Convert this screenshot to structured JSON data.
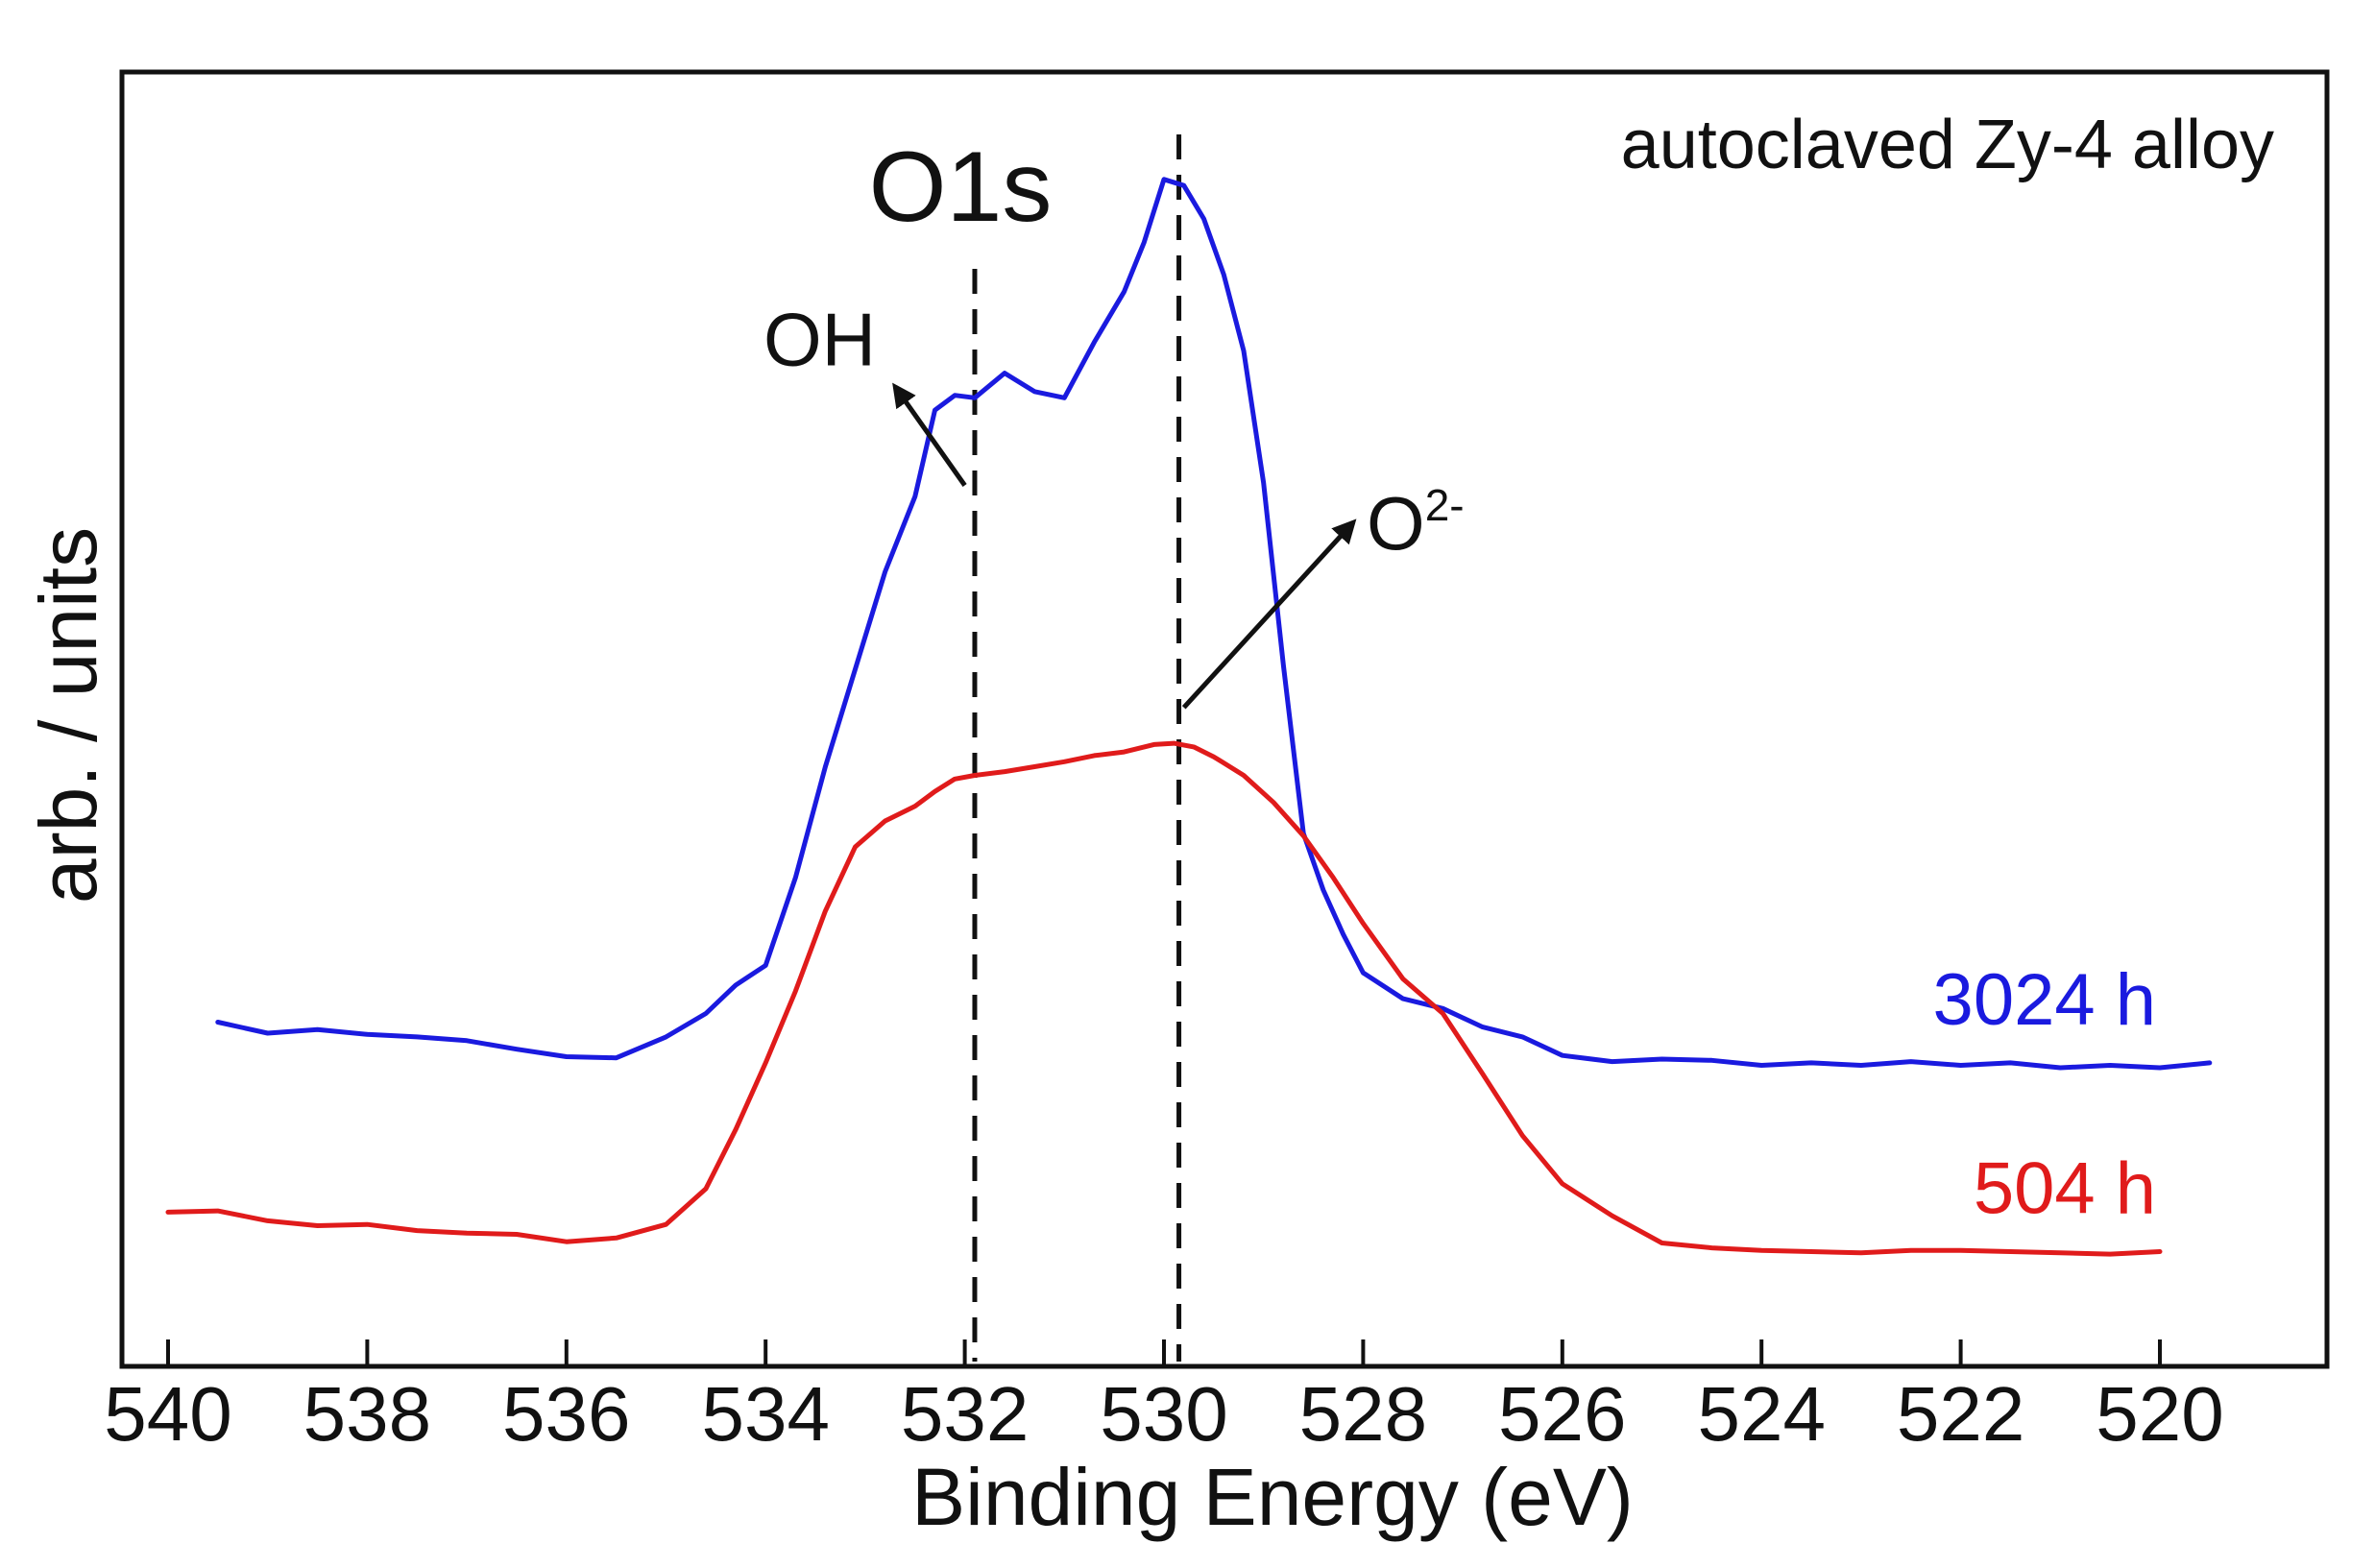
{
  "chart_data": {
    "type": "line",
    "title": "O1s",
    "subtitle": "autoclaved Zy-4 alloy",
    "xlabel": "Binding Energy (eV)",
    "ylabel": "arb. / units",
    "xlim": [
      540,
      519
    ],
    "ylim": [
      0,
      100
    ],
    "x_reversed": true,
    "grid": false,
    "legend": "inline labels right",
    "xticks": [
      540,
      538,
      536,
      534,
      532,
      530,
      528,
      526,
      524,
      522,
      520
    ],
    "xtick_labels": [
      "540",
      "538",
      "536",
      "534",
      "532",
      "530",
      "528",
      "526",
      "524",
      "522",
      "520"
    ],
    "reference_lines": [
      {
        "name": "OH",
        "x": 531.9
      },
      {
        "name": "O2-",
        "x": 529.85
      }
    ],
    "annotations": [
      {
        "name": "oh",
        "text": "OH",
        "from": [
          532.0,
          70
        ],
        "to": [
          532.7,
          78
        ]
      },
      {
        "name": "o2",
        "text": "O",
        "superscript": "2-",
        "from": [
          529.8,
          52
        ],
        "to": [
          528.1,
          67
        ]
      }
    ],
    "series": [
      {
        "name": "3024 h",
        "color": "#1a1adf",
        "x": [
          539.5,
          539.0,
          538.5,
          538.0,
          537.5,
          537.0,
          536.5,
          536.0,
          535.5,
          535.0,
          534.6,
          534.3,
          534.0,
          533.7,
          533.4,
          533.1,
          532.8,
          532.5,
          532.3,
          532.1,
          531.9,
          531.6,
          531.3,
          531.0,
          530.7,
          530.4,
          530.2,
          530.0,
          529.8,
          529.6,
          529.4,
          529.2,
          529.0,
          528.8,
          528.6,
          528.4,
          528.2,
          528.0,
          527.6,
          527.2,
          526.8,
          526.4,
          526.0,
          525.5,
          525.0,
          524.5,
          524.0,
          523.5,
          523.0,
          522.5,
          522.0,
          521.5,
          521.0,
          520.5,
          520.0,
          519.5
        ],
        "values": [
          26.5,
          25.6,
          25.9,
          25.5,
          25.3,
          25.0,
          24.3,
          23.7,
          23.6,
          25.3,
          27.2,
          29.5,
          31.1,
          38.2,
          47.2,
          55.1,
          63.0,
          69.1,
          76.1,
          77.3,
          77.1,
          79.1,
          77.6,
          77.1,
          81.6,
          85.7,
          89.7,
          94.8,
          94.3,
          91.6,
          87.1,
          80.9,
          70.2,
          55.4,
          41.8,
          37.2,
          33.6,
          30.5,
          28.4,
          27.6,
          26.1,
          25.3,
          23.8,
          23.3,
          23.5,
          23.4,
          23.0,
          23.2,
          23.0,
          23.3,
          23.0,
          23.2,
          22.8,
          23.0,
          22.8,
          23.2
        ]
      },
      {
        "name": "504 h",
        "color": "#e01b1b",
        "x": [
          540.0,
          539.5,
          539.0,
          538.5,
          538.0,
          537.5,
          537.0,
          536.5,
          536.0,
          535.5,
          535.0,
          534.6,
          534.3,
          534.0,
          533.7,
          533.4,
          533.1,
          532.8,
          532.5,
          532.3,
          532.1,
          531.9,
          531.6,
          531.3,
          531.0,
          530.7,
          530.4,
          530.1,
          529.9,
          529.7,
          529.5,
          529.2,
          528.9,
          528.6,
          528.3,
          528.0,
          527.6,
          527.2,
          526.8,
          526.4,
          526.0,
          525.5,
          525.0,
          524.5,
          524.0,
          523.5,
          523.0,
          522.5,
          522.0,
          521.5,
          521.0,
          520.5,
          520.0
        ],
        "values": [
          11.1,
          11.2,
          10.4,
          10.0,
          10.1,
          9.6,
          9.4,
          9.3,
          8.7,
          9.0,
          10.1,
          13.0,
          17.8,
          23.2,
          29.0,
          35.5,
          40.7,
          42.8,
          44.0,
          45.2,
          46.2,
          46.5,
          46.8,
          47.2,
          47.6,
          48.1,
          48.4,
          49.0,
          49.1,
          48.8,
          48.0,
          46.5,
          44.3,
          41.6,
          38.2,
          34.5,
          30.0,
          27.2,
          22.3,
          17.3,
          13.4,
          10.8,
          8.6,
          8.2,
          8.0,
          7.9,
          7.8,
          8.0,
          8.0,
          7.9,
          7.8,
          7.7,
          7.9
        ]
      }
    ]
  }
}
